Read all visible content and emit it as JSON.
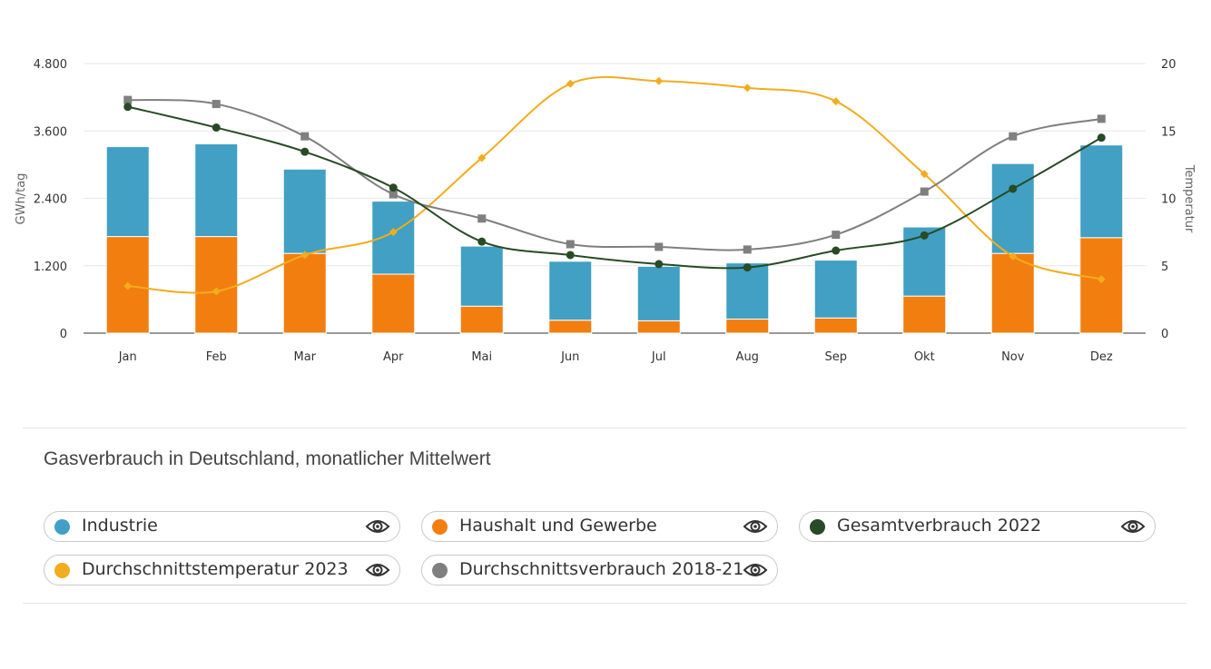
{
  "chart_data": {
    "type": "bar",
    "title": "Gasverbrauch in Deutschland, monatlicher Mittelwert",
    "categories": [
      "Jan",
      "Feb",
      "Mar",
      "Apr",
      "Mai",
      "Jun",
      "Jul",
      "Aug",
      "Sep",
      "Okt",
      "Nov",
      "Dez"
    ],
    "ylabel": "GWh/tag",
    "y2label": "Temperatur",
    "ylim": [
      0,
      4800
    ],
    "y2lim": [
      0,
      20
    ],
    "yticks": [
      "0",
      "1.200",
      "2.400",
      "3.600",
      "4.800"
    ],
    "y2ticks": [
      "0",
      "5",
      "10",
      "15",
      "20"
    ],
    "grid": true,
    "legend_position": "bottom",
    "series": [
      {
        "name": "Industrie",
        "type": "bar",
        "stacked": true,
        "axis": "left",
        "color": "#41a0c3",
        "values": [
          1600,
          1650,
          1500,
          1300,
          1070,
          1050,
          970,
          1000,
          1030,
          1230,
          1600,
          1650
        ]
      },
      {
        "name": "Haushalt und Gewerbe",
        "type": "bar",
        "stacked": true,
        "axis": "left",
        "color": "#f27e10",
        "values": [
          1720,
          1720,
          1420,
          1050,
          480,
          230,
          220,
          250,
          270,
          660,
          1420,
          1700
        ]
      },
      {
        "name": "Gesamtverbrauch 2022",
        "type": "line",
        "axis": "left",
        "color": "#284a25",
        "values": [
          4030,
          3660,
          3230,
          2590,
          1630,
          1390,
          1230,
          1170,
          1470,
          1740,
          2570,
          3480
        ]
      },
      {
        "name": "Durchschnittstemperatur 2023",
        "type": "line",
        "axis": "right",
        "color": "#f2ac1d",
        "values": [
          3.5,
          3.1,
          5.8,
          7.5,
          13.0,
          18.5,
          18.7,
          18.2,
          17.2,
          11.8,
          5.7,
          4.0
        ]
      },
      {
        "name": "Durchschnittsverbrauch 2018-21",
        "type": "line",
        "axis": "right",
        "color": "#7f7f7f",
        "values": [
          17.3,
          17.0,
          14.6,
          10.3,
          8.5,
          6.6,
          6.4,
          6.2,
          7.3,
          10.5,
          14.6,
          15.9
        ]
      }
    ]
  },
  "legend": {
    "items": [
      {
        "label": "Industrie",
        "color": "#41a0c3",
        "icon": "eye-icon"
      },
      {
        "label": "Haushalt und Gewerbe",
        "color": "#f27e10",
        "icon": "eye-icon"
      },
      {
        "label": "Gesamtverbrauch 2022",
        "color": "#284a25",
        "icon": "eye-icon"
      },
      {
        "label": "Durchschnittstemperatur 2023",
        "color": "#f2ac1d",
        "icon": "eye-icon"
      },
      {
        "label": "Durchschnittsverbrauch 2018-21",
        "color": "#7f7f7f",
        "icon": "eye-icon"
      }
    ]
  }
}
